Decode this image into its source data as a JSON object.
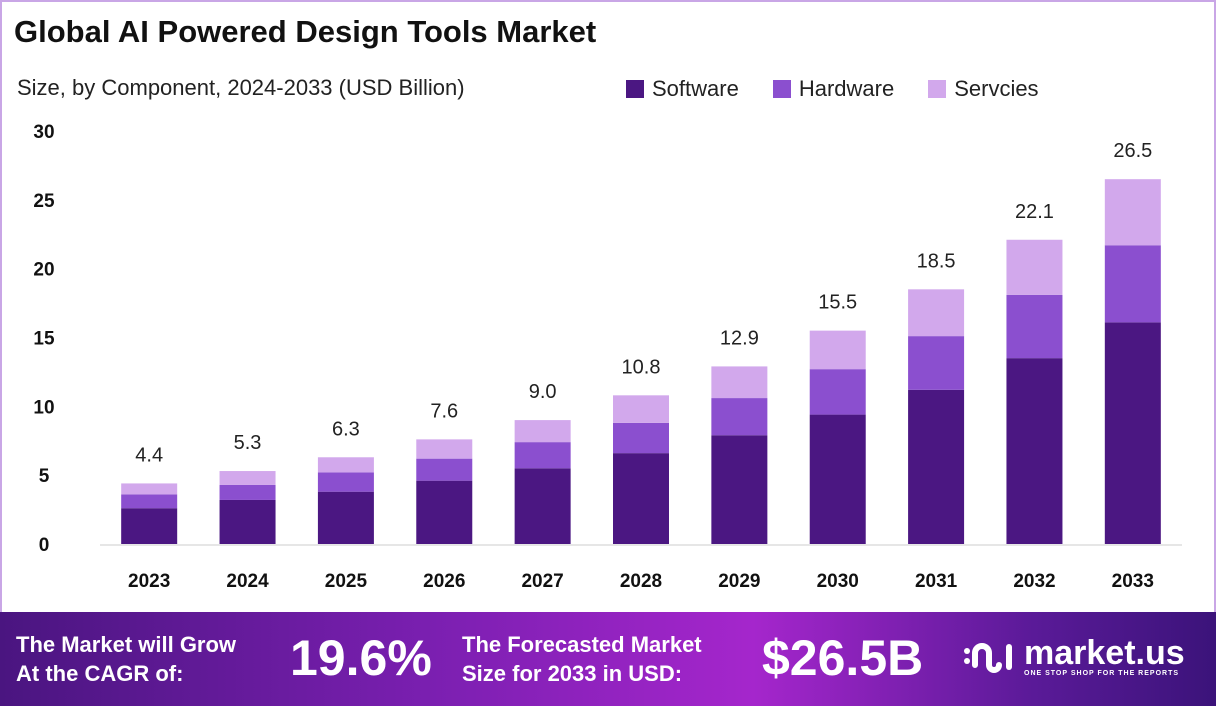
{
  "chart_data": {
    "type": "bar",
    "stacked": true,
    "title": "Global AI Powered Design Tools Market",
    "subtitle": "Size, by Component, 2024-2033 (USD Billion)",
    "categories": [
      "2023",
      "2024",
      "2025",
      "2026",
      "2027",
      "2028",
      "2029",
      "2030",
      "2031",
      "2032",
      "2033"
    ],
    "series": [
      {
        "name": "Software",
        "color": "#4b1782",
        "values": [
          2.6,
          3.2,
          3.8,
          4.6,
          5.5,
          6.6,
          7.9,
          9.4,
          11.2,
          13.5,
          16.1
        ]
      },
      {
        "name": "Hardware",
        "color": "#8b4fcf",
        "values": [
          1.0,
          1.1,
          1.4,
          1.6,
          1.9,
          2.2,
          2.7,
          3.3,
          3.9,
          4.6,
          5.6
        ]
      },
      {
        "name": "Servcies",
        "color": "#d2a8ec",
        "values": [
          0.8,
          1.0,
          1.1,
          1.4,
          1.6,
          2.0,
          2.3,
          2.8,
          3.4,
          4.0,
          4.8
        ]
      }
    ],
    "totals": [
      "4.4",
      "5.3",
      "6.3",
      "7.6",
      "9.0",
      "10.8",
      "12.9",
      "15.5",
      "18.5",
      "22.1",
      "26.5"
    ],
    "ylim": [
      0,
      30
    ],
    "yticks": [
      "0",
      "5",
      "10",
      "15",
      "20",
      "25",
      "30"
    ],
    "grid": false,
    "legend": "top-right"
  },
  "footer": {
    "cagr_label_1": "The Market will Grow",
    "cagr_label_2": "At the CAGR of:",
    "cagr_value": "19.6%",
    "forecast_label_1": "The Forecasted Market",
    "forecast_label_2": "Size for 2033 in USD:",
    "forecast_value": "$26.5B",
    "logo_name": "market.us",
    "logo_tagline": "ONE STOP SHOP FOR THE REPORTS"
  }
}
